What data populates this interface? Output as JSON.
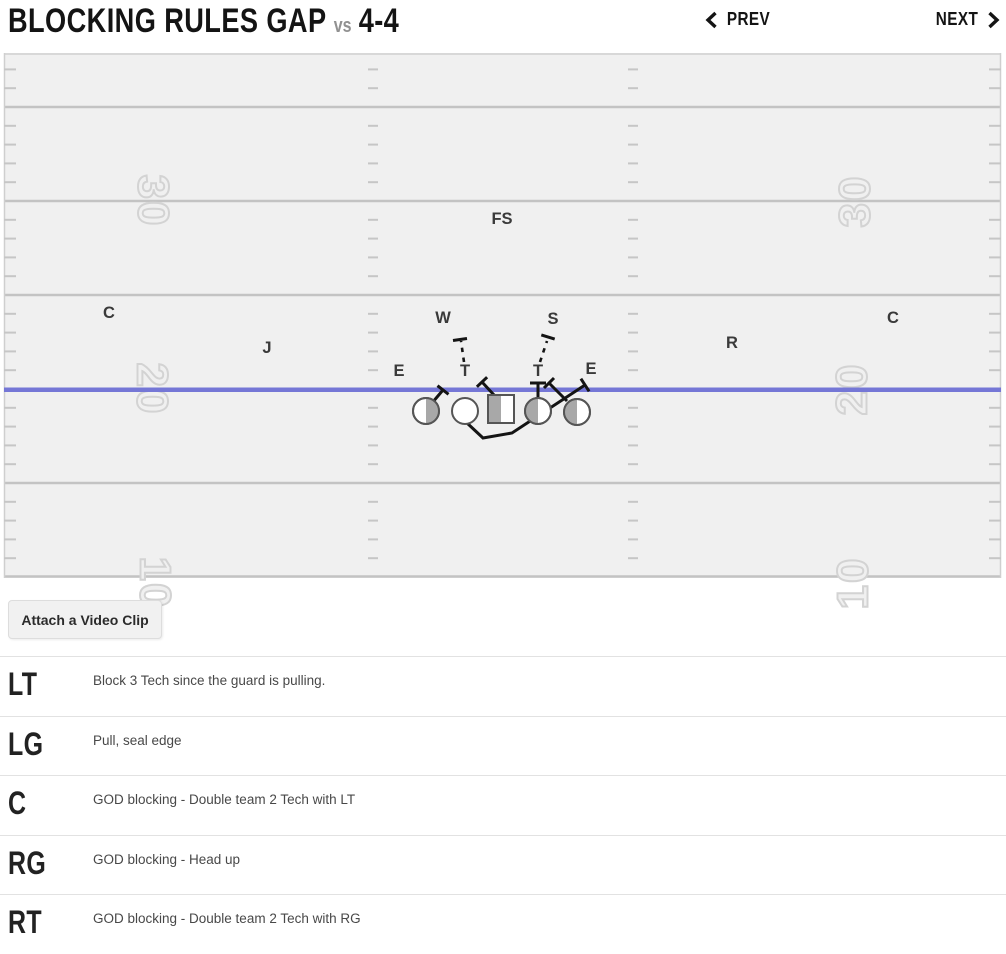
{
  "header": {
    "title": "BLOCKING RULES GAP",
    "vs_label": "vs",
    "formation": "4-4",
    "prev_label": "PREV",
    "next_label": "NEXT"
  },
  "field": {
    "yard_numbers_left": [
      "30",
      "20",
      "10"
    ],
    "yard_numbers_right": [
      "30",
      "20",
      "10"
    ]
  },
  "diagram": {
    "defense_labels": [
      "FS",
      "C",
      "W",
      "S",
      "C",
      "J",
      "R",
      "E",
      "T",
      "T",
      "E"
    ],
    "colors": {
      "field_bg": "#f0f0f0",
      "yard_line": "#c3c3c3",
      "number_outline": "#d3d3d3",
      "line_of_scrimmage": "#7577d6",
      "player_fill": "#a8a8a8",
      "block_line": "#141414"
    }
  },
  "video_button": {
    "label": "Attach a Video Clip"
  },
  "blocking_rules": [
    {
      "position": "LT",
      "rule": "Block 3 Tech since the guard is pulling."
    },
    {
      "position": "LG",
      "rule": "Pull, seal edge"
    },
    {
      "position": "C",
      "rule": "GOD blocking - Double team 2 Tech with LT"
    },
    {
      "position": "RG",
      "rule": "GOD blocking - Head up"
    },
    {
      "position": "RT",
      "rule": "GOD blocking - Double team 2 Tech with RG"
    }
  ]
}
